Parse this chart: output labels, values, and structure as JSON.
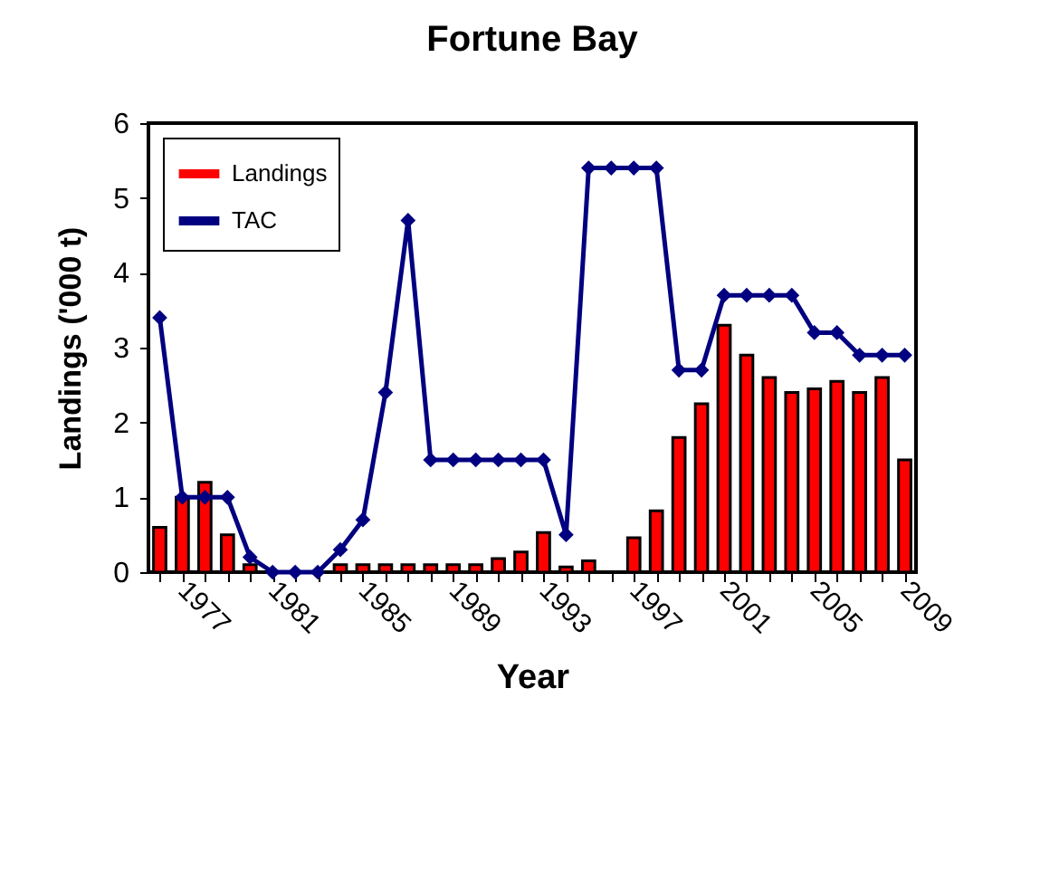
{
  "chart_data": {
    "type": "bar",
    "title": "Fortune Bay",
    "xlabel": "Year",
    "ylabel": "Landings ('000 t)",
    "categories": [
      null,
      "1977",
      null,
      null,
      null,
      "1981",
      null,
      null,
      null,
      "1985",
      null,
      null,
      null,
      "1989",
      null,
      null,
      null,
      "1993",
      null,
      null,
      null,
      "1997",
      null,
      null,
      null,
      "2001",
      null,
      null,
      null,
      "2005",
      null,
      null,
      null,
      "2009"
    ],
    "series": [
      {
        "name": "Landings",
        "color": "#ff0000",
        "values": [
          0.6,
          1.0,
          1.2,
          0.5,
          0.1,
          null,
          null,
          null,
          0.1,
          0.1,
          0.1,
          0.1,
          0.1,
          0.1,
          0.1,
          0.18,
          0.27,
          0.53,
          0.07,
          0.15,
          0,
          0.46,
          0.82,
          1.8,
          2.25,
          3.3,
          2.9,
          2.6,
          2.4,
          2.45,
          2.55,
          2.4,
          2.6,
          1.5
        ]
      },
      {
        "name": "TAC",
        "type": "line",
        "color": "#000080",
        "marker": "diamond",
        "values": [
          3.4,
          1.0,
          1.0,
          1.0,
          0.2,
          0,
          0,
          0,
          0.3,
          0.7,
          2.4,
          4.7,
          1.5,
          1.5,
          1.5,
          1.5,
          1.5,
          1.5,
          0.5,
          5.4,
          5.4,
          5.4,
          5.4,
          2.7,
          2.7,
          3.7,
          3.7,
          3.7,
          3.7,
          3.2,
          3.2,
          2.9,
          2.9,
          2.9
        ]
      }
    ],
    "ylim": [
      0,
      6
    ],
    "yticks": [
      0,
      1,
      2,
      3,
      4,
      5,
      6
    ],
    "grid": false,
    "legend": "top left"
  }
}
